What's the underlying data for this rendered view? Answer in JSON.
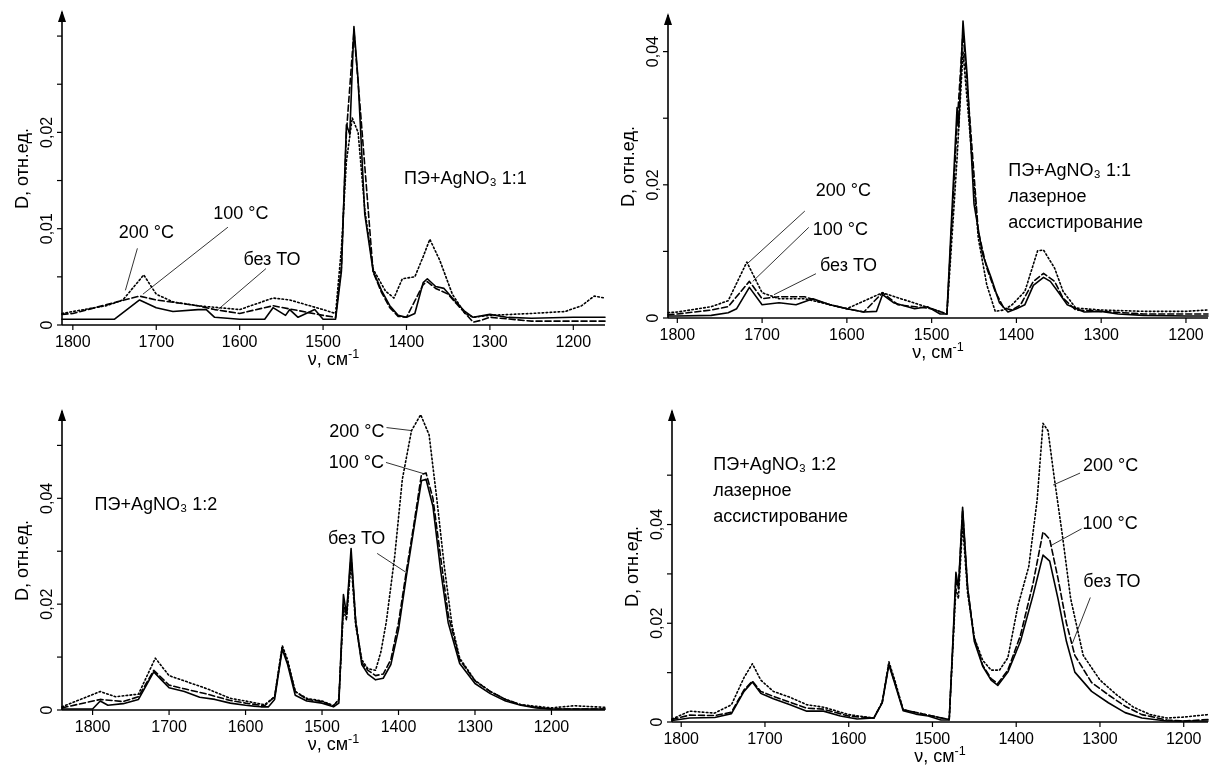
{
  "chart_data": [
    {
      "type": "line",
      "xlabel": "ν, см$^{-1}$",
      "ylabel": "D, отн.ед.",
      "xlim": [
        1813,
        1162
      ],
      "ylim": [
        0,
        0.0325
      ],
      "xticks": [
        1800,
        1700,
        1600,
        1500,
        1400,
        1300,
        1200
      ],
      "yticks": [
        {
          "value": 0,
          "label": "0"
        },
        {
          "value": 0.005,
          "label": null
        },
        {
          "value": 0.01,
          "label": "0,01"
        },
        {
          "value": 0.015,
          "label": null
        },
        {
          "value": 0.02,
          "label": "0,02"
        },
        {
          "value": 0.025,
          "label": null
        },
        {
          "value": 0.03,
          "label": null
        }
      ],
      "annotations": [
        "ПЭ+AgNO₃ 1:1",
        {
          "text": "200 °C",
          "x": 1737,
          "y": 0.0036
        },
        {
          "text": "100 °C",
          "x": 1716,
          "y": 0.0032
        },
        {
          "text": "без ТО",
          "x": 1626,
          "y": 0.0016
        }
      ],
      "series": [
        {
          "color": "#000000",
          "line_style": "dotted",
          "x": [
            1813,
            1800,
            1760,
            1740,
            1715,
            1700,
            1680,
            1650,
            1600,
            1560,
            1540,
            1500,
            1485,
            1478,
            1472,
            1465,
            1458,
            1450,
            1440,
            1425,
            1415,
            1405,
            1390,
            1380,
            1372,
            1360,
            1345,
            1330,
            1320,
            1300,
            1250,
            1210,
            1190,
            1175,
            1162
          ],
          "values": [
            0.0012,
            0.0014,
            0.002,
            0.0026,
            0.0052,
            0.0032,
            0.0024,
            0.002,
            0.0016,
            0.0028,
            0.0026,
            0.0016,
            0.0012,
            0.008,
            0.017,
            0.0215,
            0.02,
            0.012,
            0.0058,
            0.0035,
            0.0028,
            0.0048,
            0.005,
            0.0071,
            0.0089,
            0.0067,
            0.0032,
            0.0012,
            0.0008,
            0.001,
            0.0012,
            0.0014,
            0.002,
            0.003,
            0.0028
          ]
        },
        {
          "color": "#000000",
          "line_style": "dashed",
          "x": [
            1813,
            1800,
            1720,
            1700,
            1650,
            1630,
            1600,
            1560,
            1500,
            1485,
            1478,
            1472,
            1463,
            1455,
            1440,
            1430,
            1420,
            1410,
            1400,
            1380,
            1375,
            1365,
            1350,
            1340,
            1320,
            1310,
            1300,
            1250,
            1200,
            1162
          ],
          "values": [
            0.0011,
            0.0012,
            0.003,
            0.0026,
            0.002,
            0.0016,
            0.0012,
            0.002,
            0.001,
            0.0008,
            0.006,
            0.02,
            0.0305,
            0.022,
            0.0055,
            0.0034,
            0.0018,
            0.0009,
            0.0008,
            0.0042,
            0.0045,
            0.0038,
            0.0032,
            0.0022,
            0.0003,
            0.0005,
            0.0008,
            0.0004,
            0.0004,
            0.0004
          ]
        },
        {
          "color": "#000000",
          "line_style": "solid",
          "x": [
            1813,
            1800,
            1750,
            1720,
            1700,
            1680,
            1650,
            1640,
            1630,
            1600,
            1570,
            1560,
            1545,
            1540,
            1530,
            1510,
            1500,
            1485,
            1478,
            1472,
            1468,
            1463,
            1458,
            1450,
            1440,
            1430,
            1420,
            1410,
            1400,
            1390,
            1380,
            1375,
            1365,
            1355,
            1345,
            1330,
            1320,
            1300,
            1280,
            1250,
            1200,
            1162
          ],
          "values": [
            0.0006,
            0.0006,
            0.0006,
            0.0026,
            0.0018,
            0.0014,
            0.0016,
            0.0016,
            0.0008,
            0.0006,
            0.0006,
            0.0018,
            0.001,
            0.0016,
            0.0008,
            0.0016,
            0.0006,
            0.0006,
            0.0056,
            0.0208,
            0.0198,
            0.031,
            0.0254,
            0.0115,
            0.0056,
            0.0036,
            0.002,
            0.001,
            0.0008,
            0.0012,
            0.0044,
            0.0048,
            0.004,
            0.0038,
            0.0028,
            0.0014,
            0.0008,
            0.0011,
            0.0008,
            0.0007,
            0.0008,
            0.0008
          ]
        }
      ]
    },
    {
      "type": "line",
      "xlabel": "ν, см$^{-1}$",
      "ylabel": "D, отн.ед.",
      "xlim": [
        1811,
        1174
      ],
      "ylim": [
        0,
        0.0455
      ],
      "xticks": [
        1800,
        1700,
        1600,
        1500,
        1400,
        1300,
        1200
      ],
      "yticks": [
        {
          "value": 0,
          "label": "0"
        },
        {
          "value": 0.01,
          "label": null
        },
        {
          "value": 0.02,
          "label": "0,02"
        },
        {
          "value": 0.03,
          "label": null
        },
        {
          "value": 0.04,
          "label": "0,04"
        }
      ],
      "annotations": [
        "ПЭ+AgNO₃ 1:1\nлазерное\nассистирование",
        {
          "text": "200 °C",
          "x": 1718,
          "y": 0.0081
        },
        {
          "text": "100 °C",
          "x": 1711,
          "y": 0.0055
        },
        {
          "text": "без ТО",
          "x": 1686,
          "y": 0.0035
        }
      ],
      "series": [
        {
          "color": "#000000",
          "line_style": "dotted",
          "x": [
            1811,
            1800,
            1760,
            1740,
            1718,
            1700,
            1680,
            1650,
            1620,
            1600,
            1558,
            1500,
            1482,
            1475,
            1470,
            1463,
            1455,
            1445,
            1435,
            1425,
            1415,
            1405,
            1390,
            1375,
            1368,
            1355,
            1345,
            1330,
            1300,
            1250,
            1200,
            1174
          ],
          "values": [
            0.0008,
            0.0009,
            0.0017,
            0.0026,
            0.0084,
            0.0038,
            0.0029,
            0.0029,
            0.002,
            0.0014,
            0.0038,
            0.0014,
            0.0006,
            0.014,
            0.024,
            0.04,
            0.028,
            0.012,
            0.005,
            0.001,
            0.0012,
            0.002,
            0.004,
            0.0101,
            0.0102,
            0.0075,
            0.004,
            0.0015,
            0.0012,
            0.001,
            0.001,
            0.0012
          ]
        },
        {
          "color": "#000000",
          "line_style": "dashed",
          "x": [
            1811,
            1800,
            1760,
            1740,
            1715,
            1700,
            1680,
            1650,
            1620,
            1600,
            1580,
            1558,
            1540,
            1500,
            1482,
            1475,
            1470,
            1463,
            1455,
            1445,
            1435,
            1425,
            1415,
            1405,
            1395,
            1380,
            1368,
            1355,
            1345,
            1330,
            1300,
            1250,
            1174
          ],
          "values": [
            0.0005,
            0.0006,
            0.0012,
            0.0017,
            0.0055,
            0.0029,
            0.0032,
            0.0032,
            0.002,
            0.0014,
            0.0009,
            0.0038,
            0.002,
            0.0014,
            0.0006,
            0.017,
            0.029,
            0.043,
            0.03,
            0.013,
            0.0075,
            0.004,
            0.0015,
            0.0012,
            0.002,
            0.0055,
            0.0067,
            0.0055,
            0.003,
            0.0012,
            0.001,
            0.0006,
            0.0006
          ]
        },
        {
          "color": "#000000",
          "line_style": "solid",
          "x": [
            1811,
            1800,
            1760,
            1740,
            1730,
            1715,
            1700,
            1680,
            1660,
            1640,
            1620,
            1600,
            1580,
            1565,
            1558,
            1545,
            1520,
            1505,
            1490,
            1482,
            1475,
            1470,
            1468,
            1463,
            1458,
            1450,
            1440,
            1430,
            1420,
            1410,
            1400,
            1390,
            1380,
            1368,
            1360,
            1350,
            1340,
            1320,
            1300,
            1280,
            1250,
            1200,
            1174
          ],
          "values": [
            0.0003,
            0.0003,
            0.0004,
            0.0008,
            0.0014,
            0.0046,
            0.002,
            0.0023,
            0.002,
            0.0029,
            0.002,
            0.0014,
            0.0009,
            0.001,
            0.0035,
            0.0023,
            0.0014,
            0.0017,
            0.0006,
            0.0006,
            0.0188,
            0.0316,
            0.0287,
            0.0446,
            0.0362,
            0.0171,
            0.0096,
            0.0061,
            0.0023,
            0.0009,
            0.0014,
            0.002,
            0.0049,
            0.0061,
            0.0055,
            0.0038,
            0.002,
            0.0009,
            0.001,
            0.0006,
            0.0004,
            0.0003,
            0.0003
          ]
        }
      ]
    },
    {
      "type": "line",
      "xlabel": "ν, см$^{-1}$",
      "ylabel": "D, отн.ед.",
      "xlim": [
        1840,
        1130
      ],
      "ylim": [
        0,
        0.0565
      ],
      "xticks": [
        1800,
        1700,
        1600,
        1500,
        1400,
        1300,
        1200
      ],
      "yticks": [
        {
          "value": 0,
          "label": "0"
        },
        {
          "value": 0.01,
          "label": null
        },
        {
          "value": 0.02,
          "label": "0,02"
        },
        {
          "value": 0.03,
          "label": null
        },
        {
          "value": 0.04,
          "label": "0,04"
        },
        {
          "value": 0.05,
          "label": null
        }
      ],
      "annotations": [
        "ПЭ+AgNO₃ 1:2",
        {
          "text": "200 °C",
          "x": 1383,
          "y": 0.0528
        },
        {
          "text": "100 °C",
          "x": 1368,
          "y": 0.0447
        },
        {
          "text": "без ТО",
          "x": 1390,
          "y": 0.026
        }
      ],
      "series": [
        {
          "color": "#000000",
          "line_style": "dotted",
          "x": [
            1840,
            1790,
            1770,
            1740,
            1718,
            1700,
            1680,
            1650,
            1620,
            1600,
            1575,
            1562,
            1552,
            1545,
            1535,
            1520,
            1500,
            1485,
            1478,
            1472,
            1468,
            1462,
            1456,
            1448,
            1440,
            1430,
            1423,
            1416,
            1405,
            1395,
            1383,
            1371,
            1360,
            1350,
            1340,
            1330,
            1320,
            1300,
            1280,
            1260,
            1240,
            1200,
            1170,
            1130
          ],
          "values": [
            0.0006,
            0.0035,
            0.0025,
            0.003,
            0.0098,
            0.0065,
            0.0055,
            0.004,
            0.0022,
            0.0017,
            0.001,
            0.0025,
            0.0122,
            0.0095,
            0.0035,
            0.0022,
            0.0017,
            0.0008,
            0.002,
            0.019,
            0.017,
            0.028,
            0.016,
            0.0095,
            0.0078,
            0.0075,
            0.011,
            0.0166,
            0.029,
            0.0436,
            0.0528,
            0.0558,
            0.052,
            0.04,
            0.027,
            0.016,
            0.0098,
            0.0056,
            0.0035,
            0.002,
            0.001,
            0.0004,
            0.0008,
            0.0005
          ]
        },
        {
          "color": "#000000",
          "line_style": "dashed",
          "x": [
            1840,
            1790,
            1760,
            1740,
            1720,
            1700,
            1680,
            1650,
            1620,
            1600,
            1575,
            1562,
            1552,
            1545,
            1535,
            1520,
            1500,
            1485,
            1478,
            1472,
            1468,
            1462,
            1456,
            1448,
            1440,
            1430,
            1420,
            1410,
            1400,
            1390,
            1380,
            1370,
            1364,
            1355,
            1345,
            1335,
            1320,
            1300,
            1280,
            1260,
            1240,
            1220,
            1200,
            1130
          ],
          "values": [
            0.0004,
            0.002,
            0.0016,
            0.0025,
            0.0075,
            0.0047,
            0.004,
            0.003,
            0.0018,
            0.0013,
            0.0008,
            0.0025,
            0.0118,
            0.009,
            0.0035,
            0.002,
            0.0016,
            0.0008,
            0.002,
            0.02,
            0.018,
            0.029,
            0.017,
            0.009,
            0.0075,
            0.0065,
            0.0068,
            0.0095,
            0.0165,
            0.026,
            0.035,
            0.0445,
            0.0448,
            0.04,
            0.029,
            0.018,
            0.0095,
            0.0055,
            0.0035,
            0.002,
            0.001,
            0.0005,
            0.0002,
            0.0002
          ]
        },
        {
          "color": "#000000",
          "line_style": "solid",
          "x": [
            1840,
            1800,
            1790,
            1780,
            1760,
            1740,
            1720,
            1710,
            1700,
            1680,
            1660,
            1640,
            1620,
            1600,
            1580,
            1570,
            1562,
            1552,
            1545,
            1535,
            1520,
            1500,
            1485,
            1478,
            1472,
            1468,
            1462,
            1456,
            1448,
            1440,
            1430,
            1420,
            1410,
            1400,
            1390,
            1380,
            1370,
            1364,
            1355,
            1345,
            1335,
            1320,
            1300,
            1280,
            1260,
            1240,
            1220,
            1200,
            1130
          ],
          "values": [
            0.0002,
            0.0002,
            0.0017,
            0.0009,
            0.0012,
            0.002,
            0.0072,
            0.0057,
            0.0042,
            0.0035,
            0.0024,
            0.002,
            0.0013,
            0.0009,
            0.0006,
            0.0006,
            0.002,
            0.0115,
            0.0086,
            0.0028,
            0.0017,
            0.0013,
            0.0006,
            0.0013,
            0.0218,
            0.0181,
            0.0305,
            0.0166,
            0.0086,
            0.0068,
            0.0057,
            0.006,
            0.0086,
            0.0152,
            0.025,
            0.0342,
            0.0433,
            0.0436,
            0.0385,
            0.0265,
            0.0165,
            0.0088,
            0.005,
            0.0031,
            0.0017,
            0.0009,
            0.0004,
            0.0002,
            0.0002
          ]
        }
      ]
    },
    {
      "type": "line",
      "xlabel": "ν, см$^{-1}$",
      "ylabel": "D, отн.ед.",
      "xlim": [
        1811,
        1171
      ],
      "ylim": [
        0,
        0.063
      ],
      "xticks": [
        1800,
        1700,
        1600,
        1500,
        1400,
        1300,
        1200
      ],
      "yticks": [
        {
          "value": 0,
          "label": "0"
        },
        {
          "value": 0.01,
          "label": null
        },
        {
          "value": 0.02,
          "label": "0,02"
        },
        {
          "value": 0.03,
          "label": null
        },
        {
          "value": 0.04,
          "label": "0,04"
        },
        {
          "value": 0.05,
          "label": null
        }
      ],
      "annotations": [
        "ПЭ+AgNO₃ 1:2\nлазерное\nассистирование",
        {
          "text": "200 °C",
          "x": 1356,
          "y": 0.048
        },
        {
          "text": "100 °C",
          "x": 1359,
          "y": 0.0357
        },
        {
          "text": "без ТО",
          "x": 1333,
          "y": 0.0159
        }
      ],
      "series": [
        {
          "color": "#000000",
          "line_style": "dotted",
          "x": [
            1811,
            1790,
            1760,
            1740,
            1725,
            1715,
            1705,
            1690,
            1670,
            1650,
            1630,
            1600,
            1570,
            1560,
            1552,
            1545,
            1535,
            1500,
            1480,
            1475,
            1472,
            1469,
            1464,
            1458,
            1450,
            1440,
            1430,
            1420,
            1410,
            1398,
            1385,
            1375,
            1368,
            1362,
            1355,
            1345,
            1335,
            1320,
            1300,
            1280,
            1260,
            1240,
            1220,
            1200,
            1171
          ],
          "values": [
            0.0006,
            0.0022,
            0.0018,
            0.0035,
            0.009,
            0.0118,
            0.0085,
            0.0062,
            0.005,
            0.0035,
            0.003,
            0.0015,
            0.0008,
            0.004,
            0.0122,
            0.0085,
            0.0025,
            0.0012,
            0.0005,
            0.017,
            0.027,
            0.025,
            0.04,
            0.026,
            0.017,
            0.0125,
            0.0105,
            0.0105,
            0.013,
            0.0235,
            0.0315,
            0.045,
            0.0605,
            0.059,
            0.05,
            0.038,
            0.025,
            0.0135,
            0.0085,
            0.0055,
            0.003,
            0.0015,
            0.0008,
            0.001,
            0.0015
          ]
        },
        {
          "color": "#000000",
          "line_style": "dashed",
          "x": [
            1811,
            1790,
            1760,
            1740,
            1725,
            1715,
            1705,
            1690,
            1670,
            1650,
            1630,
            1600,
            1570,
            1560,
            1552,
            1545,
            1535,
            1500,
            1480,
            1475,
            1472,
            1469,
            1464,
            1458,
            1450,
            1440,
            1430,
            1422,
            1410,
            1395,
            1380,
            1368,
            1360,
            1350,
            1340,
            1330,
            1310,
            1290,
            1270,
            1250,
            1220,
            1200,
            1171
          ],
          "values": [
            0.0005,
            0.0014,
            0.0013,
            0.002,
            0.0065,
            0.0083,
            0.0062,
            0.0052,
            0.004,
            0.0028,
            0.0026,
            0.0012,
            0.0008,
            0.004,
            0.0118,
            0.008,
            0.0025,
            0.0012,
            0.0005,
            0.018,
            0.029,
            0.027,
            0.043,
            0.027,
            0.017,
            0.0115,
            0.0088,
            0.0078,
            0.0105,
            0.0175,
            0.028,
            0.0385,
            0.037,
            0.029,
            0.02,
            0.0135,
            0.008,
            0.0055,
            0.0032,
            0.0015,
            0.0004,
            0.0002,
            0.0005
          ]
        },
        {
          "color": "#000000",
          "line_style": "solid",
          "x": [
            1811,
            1790,
            1760,
            1740,
            1725,
            1715,
            1705,
            1690,
            1670,
            1650,
            1630,
            1610,
            1590,
            1570,
            1560,
            1552,
            1545,
            1535,
            1520,
            1505,
            1490,
            1480,
            1475,
            1472,
            1469,
            1464,
            1458,
            1450,
            1440,
            1430,
            1422,
            1410,
            1395,
            1380,
            1368,
            1360,
            1350,
            1340,
            1330,
            1310,
            1290,
            1270,
            1250,
            1220,
            1200,
            1171
          ],
          "values": [
            0.0003,
            0.0008,
            0.0009,
            0.0017,
            0.0062,
            0.0081,
            0.0058,
            0.0047,
            0.0035,
            0.0022,
            0.0022,
            0.0012,
            0.0006,
            0.0008,
            0.0039,
            0.0116,
            0.0078,
            0.0023,
            0.0016,
            0.0012,
            0.0004,
            0.0004,
            0.0186,
            0.0303,
            0.0272,
            0.0435,
            0.0272,
            0.0163,
            0.0113,
            0.0085,
            0.0074,
            0.0101,
            0.0163,
            0.0256,
            0.0338,
            0.0326,
            0.0249,
            0.0163,
            0.0101,
            0.0062,
            0.0039,
            0.0019,
            0.0008,
            0.0002,
            0.0002,
            0.0002
          ]
        }
      ]
    }
  ]
}
